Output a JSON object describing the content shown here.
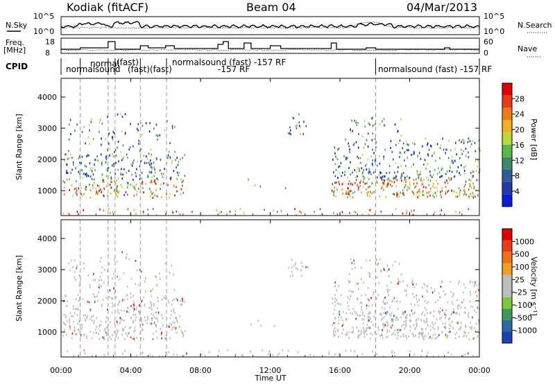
{
  "header": {
    "station": "Kodiak (fitACF)",
    "beam": "Beam 04",
    "date": "04/Mar/2013"
  },
  "noise_panel": {
    "label_left": "N.Sky",
    "label_right": "N.Search",
    "ticks_left": [
      "10^5",
      "10^0"
    ],
    "ticks_right": [
      "10^5",
      "10^0"
    ]
  },
  "freq_panel": {
    "label_left_1": "Freq.",
    "label_left_2": "[MHz]",
    "label_right": "Nave",
    "ticks_left": [
      "18",
      "8"
    ],
    "ticks_right": [
      "60",
      "0"
    ]
  },
  "cpid_panel": {
    "label": "CPID",
    "entries": [
      "normalsound",
      "normal",
      "(fast)",
      "(fast)(fast)",
      "-157 RF",
      "normalsound (fast) -157 RF",
      "normalsound (fast) -157 RF"
    ]
  },
  "chart_data": [
    {
      "type": "heatmap",
      "title": "Power",
      "ylabel": "Slant Range [km]",
      "xlabel": "Time UT",
      "ylim": [
        200,
        4600
      ],
      "yticks": [
        "1000",
        "2000",
        "3000",
        "4000"
      ],
      "xticks": [
        "00:00",
        "04:00",
        "08:00",
        "12:00",
        "16:00",
        "20:00",
        "00:00"
      ],
      "colorbar": {
        "label": "Power [dB]",
        "ticks": [
          "4",
          "8",
          "12",
          "16",
          "20",
          "24",
          "28"
        ],
        "colors": [
          "#0a1ed8",
          "#233ba8",
          "#2d5e9b",
          "#3c8a6a",
          "#58b84a",
          "#b9d93a",
          "#f0b020",
          "#f07a16",
          "#e83a14",
          "#e00000"
        ]
      }
    },
    {
      "type": "heatmap",
      "title": "Velocity",
      "ylabel": "Slant Range [km]",
      "xlabel": "Time UT",
      "ylim": [
        200,
        4600
      ],
      "yticks": [
        "1000",
        "2000",
        "3000",
        "4000"
      ],
      "xticks": [
        "00:00",
        "04:00",
        "08:00",
        "12:00",
        "16:00",
        "20:00",
        "00:00"
      ],
      "colorbar": {
        "label": "Velocity [m s⁻¹]",
        "ticks": [
          "1000",
          "500",
          "100",
          "25",
          "-25",
          "-100",
          "-500",
          "-1000"
        ],
        "colors": [
          "#1f3fb8",
          "#2a6aa6",
          "#3d9a5a",
          "#7ac840",
          "#bdbdbd",
          "#bdbdbd",
          "#f0a020",
          "#f07018",
          "#e84016",
          "#e00000"
        ]
      }
    }
  ],
  "colors": {
    "ground_scatter": "#bcbcbc",
    "axis": "#000000",
    "dashed": "#999999"
  }
}
